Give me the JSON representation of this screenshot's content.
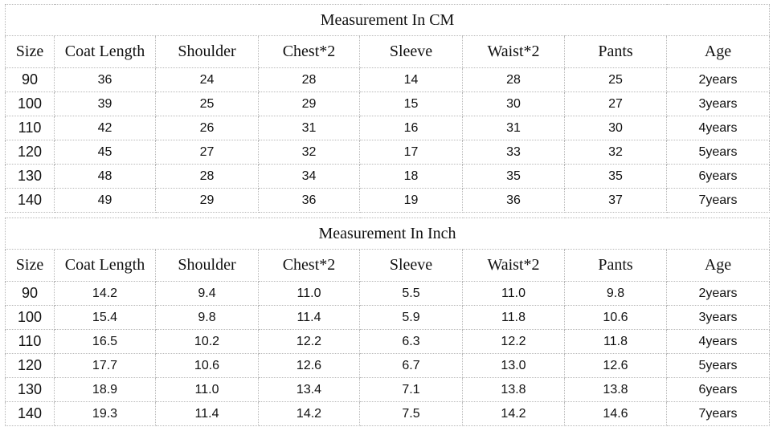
{
  "tables": [
    {
      "title": "Measurement In CM",
      "header": [
        "Size",
        "Coat Length",
        "Shoulder",
        "Chest*2",
        "Sleeve",
        "Waist*2",
        "Pants",
        "Age"
      ],
      "rows": [
        [
          "90",
          "36",
          "24",
          "28",
          "14",
          "28",
          "25",
          "2years"
        ],
        [
          "100",
          "39",
          "25",
          "29",
          "15",
          "30",
          "27",
          "3years"
        ],
        [
          "110",
          "42",
          "26",
          "31",
          "16",
          "31",
          "30",
          "4years"
        ],
        [
          "120",
          "45",
          "27",
          "32",
          "17",
          "33",
          "32",
          "5years"
        ],
        [
          "130",
          "48",
          "28",
          "34",
          "18",
          "35",
          "35",
          "6years"
        ],
        [
          "140",
          "49",
          "29",
          "36",
          "19",
          "36",
          "37",
          "7years"
        ]
      ]
    },
    {
      "title": "Measurement In Inch",
      "header": [
        "Size",
        "Coat Length",
        "Shoulder",
        "Chest*2",
        "Sleeve",
        "Waist*2",
        "Pants",
        "Age"
      ],
      "rows": [
        [
          "90",
          "14.2",
          "9.4",
          "11.0",
          "5.5",
          "11.0",
          "9.8",
          "2years"
        ],
        [
          "100",
          "15.4",
          "9.8",
          "11.4",
          "5.9",
          "11.8",
          "10.6",
          "3years"
        ],
        [
          "110",
          "16.5",
          "10.2",
          "12.2",
          "6.3",
          "12.2",
          "11.8",
          "4years"
        ],
        [
          "120",
          "17.7",
          "10.6",
          "12.6",
          "6.7",
          "13.0",
          "12.6",
          "5years"
        ],
        [
          "130",
          "18.9",
          "11.0",
          "13.4",
          "7.1",
          "13.8",
          "13.8",
          "6years"
        ],
        [
          "140",
          "19.3",
          "11.4",
          "14.2",
          "7.5",
          "14.2",
          "14.6",
          "7years"
        ]
      ]
    }
  ]
}
